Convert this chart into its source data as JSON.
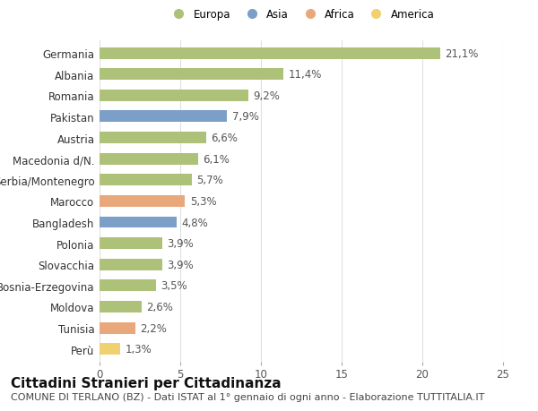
{
  "categories": [
    "Germania",
    "Albania",
    "Romania",
    "Pakistan",
    "Austria",
    "Macedonia d/N.",
    "Serbia/Montenegro",
    "Marocco",
    "Bangladesh",
    "Polonia",
    "Slovacchia",
    "Bosnia-Erzegovina",
    "Moldova",
    "Tunisia",
    "Perù"
  ],
  "values": [
    21.1,
    11.4,
    9.2,
    7.9,
    6.6,
    6.1,
    5.7,
    5.3,
    4.8,
    3.9,
    3.9,
    3.5,
    2.6,
    2.2,
    1.3
  ],
  "labels": [
    "21,1%",
    "11,4%",
    "9,2%",
    "7,9%",
    "6,6%",
    "6,1%",
    "5,7%",
    "5,3%",
    "4,8%",
    "3,9%",
    "3,9%",
    "3,5%",
    "2,6%",
    "2,2%",
    "1,3%"
  ],
  "continents": [
    "Europa",
    "Europa",
    "Europa",
    "Asia",
    "Europa",
    "Europa",
    "Europa",
    "Africa",
    "Asia",
    "Europa",
    "Europa",
    "Europa",
    "Europa",
    "Africa",
    "America"
  ],
  "colors": {
    "Europa": "#adc178",
    "Asia": "#7b9fc7",
    "Africa": "#e8a87c",
    "America": "#f0d070"
  },
  "xlim": [
    0,
    25
  ],
  "xticks": [
    0,
    5,
    10,
    15,
    20,
    25
  ],
  "background_color": "#ffffff",
  "grid_color": "#e0e0e0",
  "title": "Cittadini Stranieri per Cittadinanza",
  "subtitle": "COMUNE DI TERLANO (BZ) - Dati ISTAT al 1° gennaio di ogni anno - Elaborazione TUTTITALIA.IT",
  "bar_height": 0.55,
  "label_fontsize": 8.5,
  "tick_fontsize": 8.5,
  "title_fontsize": 11,
  "subtitle_fontsize": 8
}
